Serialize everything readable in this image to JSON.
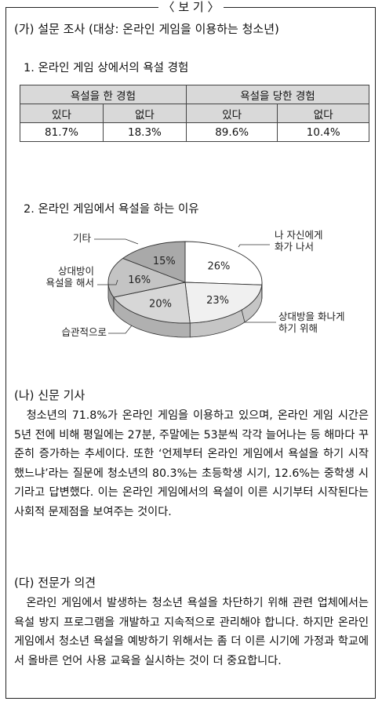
{
  "box_title": "보 기",
  "section_a": {
    "title": "(가) 설문 조사 (대상: 온라인 게임을 이용하는 청소년)",
    "q1_title": "1. 온라인 게임 상에서의 욕설 경험",
    "table": {
      "group_headers": [
        "욕설을 한 경험",
        "욕설을 당한 경험"
      ],
      "sub_headers": [
        "있다",
        "없다",
        "있다",
        "없다"
      ],
      "values": [
        "81.7%",
        "18.3%",
        "89.6%",
        "10.4%"
      ]
    },
    "q2_title": "2. 온라인 게임에서 욕설을 하는 이유"
  },
  "chart_data": {
    "type": "pie",
    "title": "2. 온라인 게임에서 욕설을 하는 이유",
    "slices": [
      {
        "label": "나 자신에게 화가 나서",
        "lines": [
          "나 자신에게",
          "화가 나서"
        ],
        "value": 26,
        "value_label": "26%",
        "color": "#ffffff"
      },
      {
        "label": "상대방을 화나게 하기 위해",
        "lines": [
          "상대방을 화나게",
          "하기 위해"
        ],
        "value": 23,
        "value_label": "23%",
        "color": "#f0f0f0"
      },
      {
        "label": "습관적으로",
        "lines": [
          "습관적으로"
        ],
        "value": 20,
        "value_label": "20%",
        "color": "#d7d7d7"
      },
      {
        "label": "상대방이 욕설을 해서",
        "lines": [
          "상대방이",
          "욕설을 해서"
        ],
        "value": 16,
        "value_label": "16%",
        "color": "#c4c4c4"
      },
      {
        "label": "기타",
        "lines": [
          "기타"
        ],
        "value": 15,
        "value_label": "15%",
        "color": "#a9a9a9"
      }
    ]
  },
  "section_b": {
    "title": "(나) 신문 기사",
    "body": "　청소년의 71.8%가 온라인 게임을 이용하고 있으며, 온라인 게임 시간은 5년 전에 비해 평일에는 27분, 주말에는 53분씩 각각 늘어나는 등 해마다 꾸준히 증가하는 추세이다. 또한 ‘언제부터 온라인 게임에서 욕설을 하기 시작했느냐’라는 질문에 청소년의 80.3%는 초등학생 시기, 12.6%는 중학생 시기라고 답변했다. 이는 온라인 게임에서의 욕설이 이른 시기부터 시작된다는 사회적 문제점을 보여주는 것이다."
  },
  "section_c": {
    "title": "(다) 전문가 의견",
    "body": "　온라인 게임에서 발생하는 청소년 욕설을 차단하기 위해 관련 업체에서는 욕설 방지 프로그램을 개발하고 지속적으로 관리해야 합니다. 하지만 온라인 게임에서 청소년 욕설을 예방하기 위해서는 좀 더 이른 시기에 가정과 학교에서 올바른 언어 사용 교육을 실시하는 것이 더 중요합니다."
  }
}
